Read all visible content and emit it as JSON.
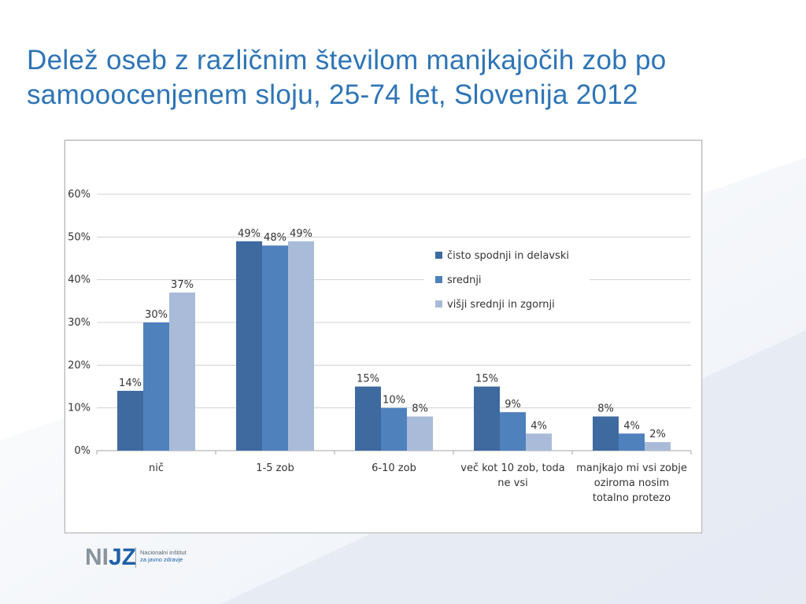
{
  "slide": {
    "title": "Delež oseb z različnim številom manjkajočih zob po samooocenjenem sloju, 25-74 let, Slovenija 2012"
  },
  "logo": {
    "mark_ni": "NI",
    "mark_jz": "JZ",
    "line1": "Nacionalni inštitut",
    "line2": "za javno zdravje"
  },
  "colors": {
    "series1": "#3f6aa0",
    "series2": "#4f81bd",
    "series3": "#a9bbd8",
    "title": "#2e74b5"
  },
  "chart_data": {
    "type": "bar",
    "title": "",
    "xlabel": "",
    "ylabel": "",
    "ylim": [
      0,
      60
    ],
    "yticks": [
      "0%",
      "10%",
      "20%",
      "30%",
      "40%",
      "50%",
      "60%"
    ],
    "grid": true,
    "legend_position": "right",
    "categories": [
      [
        "nič"
      ],
      [
        "1-5 zob"
      ],
      [
        "6-10 zob"
      ],
      [
        "več kot 10 zob, toda",
        "ne vsi"
      ],
      [
        "manjkajo mi vsi zobje",
        "oziroma nosim",
        "totalno protezo"
      ]
    ],
    "series": [
      {
        "name": "čisto spodnji in delavski",
        "values": [
          14,
          49,
          15,
          15,
          8
        ],
        "labels": [
          "14%",
          "49%",
          "15%",
          "15%",
          "8%"
        ]
      },
      {
        "name": "srednji",
        "values": [
          30,
          48,
          10,
          9,
          4
        ],
        "labels": [
          "30%",
          "48%",
          "10%",
          "9%",
          "4%"
        ]
      },
      {
        "name": "višji srednji in zgornji",
        "values": [
          37,
          49,
          8,
          4,
          2
        ],
        "labels": [
          "37%",
          "49%",
          "8%",
          "4%",
          "2%"
        ]
      }
    ]
  }
}
